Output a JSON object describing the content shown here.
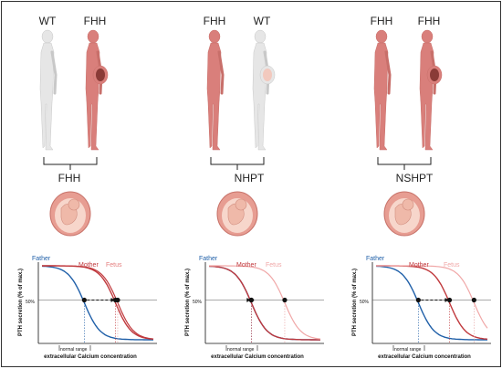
{
  "colors": {
    "father": "#1f5fa8",
    "mother": "#c0393d",
    "fetus": "#f0a7a7",
    "fhh_figure": "#d97f7b",
    "wt_figure": "#e6e6e6",
    "uterus": "#f4c4b8"
  },
  "panels": [
    {
      "top_left_label": "WT",
      "top_right_label": "FHH",
      "left_figure": "wt",
      "right_figure": "fhh",
      "diagnosis": "FHH",
      "father_curve": 0.38,
      "mother_curve": 0.66,
      "fetus_curve": 0.68,
      "fetus_pale": false,
      "legend": {
        "father": "Father",
        "mother": "Mother",
        "fetus": "Fetus"
      }
    },
    {
      "top_left_label": "FHH",
      "top_right_label": "WT",
      "left_figure": "fhh",
      "right_figure": "wt",
      "diagnosis": "NHPT",
      "father_curve": 0.38,
      "mother_curve": 0.38,
      "fetus_curve": 0.68,
      "fetus_pale": true,
      "legend": {
        "father": "Father",
        "mother": "Mother",
        "fetus": "Fetus"
      }
    },
    {
      "top_left_label": "FHH",
      "top_right_label": "FHH",
      "left_figure": "fhh",
      "right_figure": "fhh",
      "diagnosis": "NSHPT",
      "father_curve": 0.38,
      "mother_curve": 0.66,
      "fetus_curve": 0.88,
      "fetus_pale": true,
      "legend": {
        "father": "Father",
        "mother": "Mother",
        "fetus": "Fetus"
      }
    }
  ],
  "axis": {
    "y_label": "PTH secretion (% of max.)",
    "x_label": "extracellular Calcium concentration",
    "fifty_label": "50%",
    "normal_range": "normal range"
  }
}
